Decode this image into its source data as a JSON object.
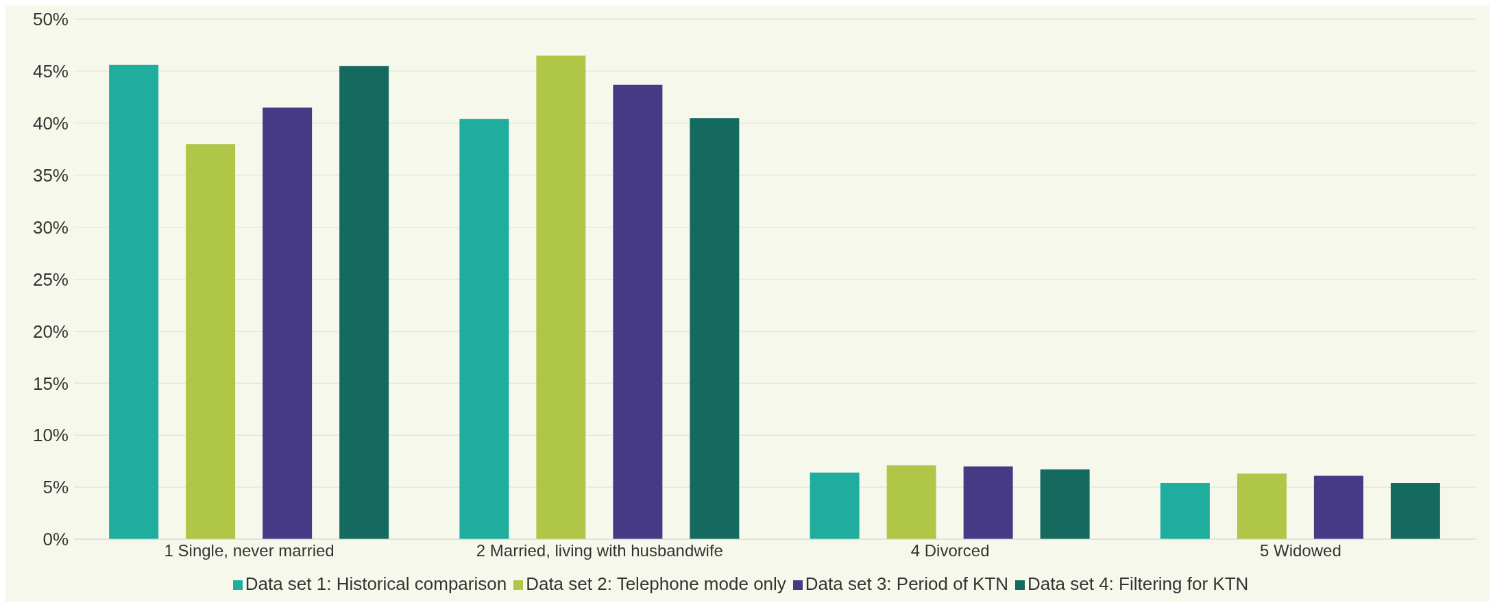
{
  "chart_data": {
    "type": "bar",
    "categories": [
      "1 Single, never married",
      "2 Married, living with husbandwife",
      "4 Divorced",
      "5 Widowed"
    ],
    "series": [
      {
        "name": "Data set 1: Historical comparison",
        "color": "#1fae9e",
        "values": [
          45.6,
          40.4,
          6.4,
          5.4
        ]
      },
      {
        "name": "Data set 2: Telephone mode only",
        "color": "#b0c647",
        "values": [
          38.0,
          46.5,
          7.1,
          6.3
        ]
      },
      {
        "name": "Data set 3: Period of KTN",
        "color": "#463a85",
        "values": [
          41.5,
          43.7,
          7.0,
          6.1
        ]
      },
      {
        "name": "Data set 4: Filtering for KTN",
        "color": "#156a60",
        "values": [
          45.5,
          40.5,
          6.7,
          5.4
        ]
      }
    ],
    "ylim": [
      0,
      50
    ],
    "yticks": [
      {
        "value": 0,
        "label": "0%"
      },
      {
        "value": 5,
        "label": "5%"
      },
      {
        "value": 10,
        "label": "10%"
      },
      {
        "value": 15,
        "label": "15%"
      },
      {
        "value": 20,
        "label": "20%"
      },
      {
        "value": 25,
        "label": "25%"
      },
      {
        "value": 30,
        "label": "30%"
      },
      {
        "value": 35,
        "label": "35%"
      },
      {
        "value": 40,
        "label": "40%"
      },
      {
        "value": 45,
        "label": "45%"
      },
      {
        "value": 50,
        "label": "50%"
      }
    ],
    "grid": "y",
    "legend": "bottom"
  }
}
